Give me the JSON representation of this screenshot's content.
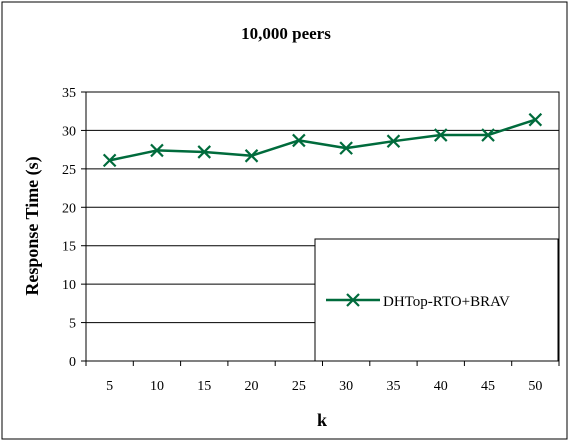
{
  "chart_data": {
    "type": "line",
    "title": "10,000 peers",
    "xlabel": "k",
    "ylabel": "Response Time (s)",
    "categories": [
      "5",
      "10",
      "15",
      "20",
      "25",
      "30",
      "35",
      "40",
      "45",
      "50"
    ],
    "ylim": [
      0,
      35
    ],
    "yticks": [
      "0",
      "5",
      "10",
      "15",
      "20",
      "25",
      "30",
      "35"
    ],
    "grid": true,
    "legend_position": "bottom-right",
    "series": [
      {
        "name": "DHTop-RTO+BRAV",
        "values": [
          26.1,
          27.4,
          27.2,
          26.7,
          28.7,
          27.7,
          28.6,
          29.4,
          29.4,
          31.4
        ],
        "color": "#006B3C",
        "marker": "x"
      }
    ]
  }
}
